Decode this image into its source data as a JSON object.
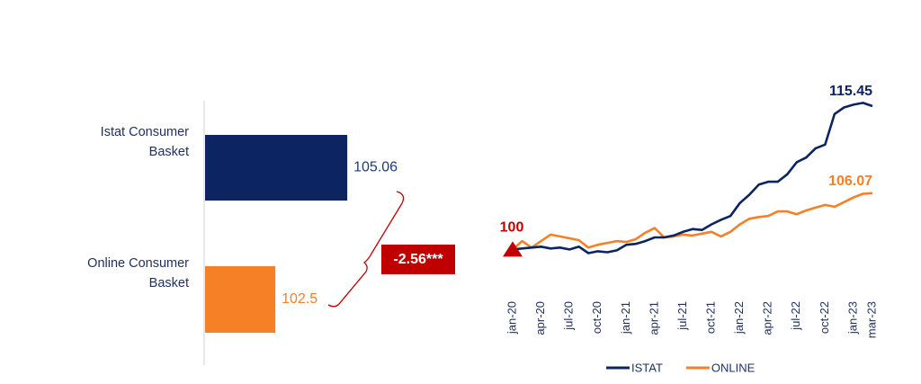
{
  "chart_data": [
    {
      "type": "bar",
      "orientation": "horizontal",
      "categories": [
        "Istat Consumer Basket",
        "Online Consumer Basket"
      ],
      "values": [
        105.06,
        102.5
      ],
      "colors": [
        "#0c2461",
        "#f58025"
      ],
      "xlim": [
        100,
        108
      ],
      "annotation": "-2.56***"
    },
    {
      "type": "line",
      "categories": [
        "jan-20",
        null,
        null,
        "apr-20",
        null,
        null,
        "jul-20",
        null,
        null,
        "oct-20",
        null,
        null,
        "jan-21",
        null,
        null,
        "apr-21",
        null,
        null,
        "jul-21",
        null,
        null,
        "oct-21",
        null,
        null,
        "jan-22",
        null,
        null,
        "apr-22",
        null,
        null,
        "jul-22",
        null,
        null,
        "oct-22",
        null,
        null,
        "jan-23",
        null,
        "mar-23"
      ],
      "series": [
        {
          "name": "ISTAT",
          "color": "#0c2461",
          "values": [
            100,
            100.1,
            100.2,
            100.3,
            100.1,
            100.2,
            100.0,
            100.3,
            99.6,
            99.8,
            99.7,
            99.9,
            100.5,
            100.6,
            100.9,
            101.3,
            101.3,
            101.5,
            101.9,
            102.2,
            102.1,
            102.7,
            103.2,
            103.6,
            105.0,
            105.9,
            107.0,
            107.3,
            107.3,
            108.1,
            109.4,
            109.9,
            110.9,
            111.3,
            114.6,
            115.3,
            115.6,
            115.8,
            115.45
          ]
        },
        {
          "name": "ONLINE",
          "color": "#f58025",
          "values": [
            100,
            100.9,
            100.2,
            100.9,
            101.6,
            101.4,
            101.2,
            101.0,
            100.2,
            100.5,
            100.7,
            100.9,
            100.8,
            101.1,
            101.8,
            102.3,
            101.3,
            101.4,
            101.6,
            101.5,
            101.7,
            101.9,
            101.4,
            101.9,
            102.7,
            103.3,
            103.5,
            103.6,
            104.1,
            104.1,
            103.8,
            104.2,
            104.5,
            104.8,
            104.6,
            105.1,
            105.6,
            106.0,
            106.07
          ]
        }
      ],
      "ylim": [
        98,
        117
      ],
      "legend": "bottom"
    }
  ]
}
